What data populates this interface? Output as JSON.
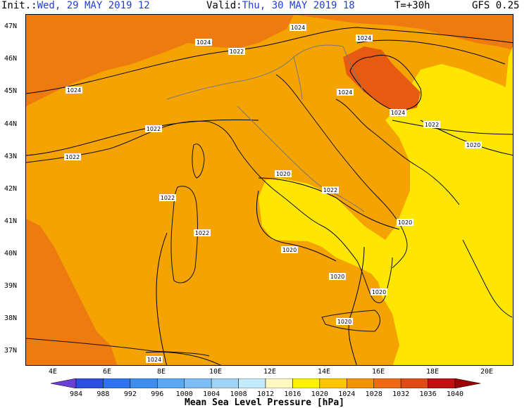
{
  "header": {
    "init_label": "Init.:",
    "init_value": "Wed, 29 MAY 2019  12",
    "valid_label": "Valid:",
    "valid_value": "Thu, 30 MAY 2019  18",
    "forecast_step": "T=+30h",
    "model": "GFS 0.25"
  },
  "map": {
    "lat_labels": [
      "47N",
      "46N",
      "45N",
      "44N",
      "43N",
      "42N",
      "41N",
      "40N",
      "39N",
      "38N",
      "37N"
    ],
    "lon_labels": [
      "4E",
      "6E",
      "8E",
      "10E",
      "12E",
      "14E",
      "16E",
      "18E",
      "20E"
    ],
    "isobar_labels": [
      {
        "text": "1024"
      },
      {
        "text": "1024"
      },
      {
        "text": "1022"
      },
      {
        "text": "1024"
      },
      {
        "text": "1024"
      },
      {
        "text": "1024"
      },
      {
        "text": "1022"
      },
      {
        "text": "1024"
      },
      {
        "text": "1022"
      },
      {
        "text": "1022"
      },
      {
        "text": "1020"
      },
      {
        "text": "1020"
      },
      {
        "text": "1022"
      },
      {
        "text": "1022"
      },
      {
        "text": "1022"
      },
      {
        "text": "1020"
      },
      {
        "text": "1020"
      },
      {
        "text": "1020"
      },
      {
        "text": "1020"
      },
      {
        "text": "1020"
      },
      {
        "text": "1024"
      }
    ]
  },
  "colorbar": {
    "title": "Mean Sea Level Pressure [hPa]",
    "ticks": [
      "984",
      "988",
      "992",
      "996",
      "1000",
      "1004",
      "1008",
      "1012",
      "1016",
      "1020",
      "1024",
      "1028",
      "1032",
      "1036",
      "1040"
    ],
    "colors": [
      "#6b3fd6",
      "#2b4fe0",
      "#2e72ee",
      "#3e8ef0",
      "#5aa7f2",
      "#7dbdf4",
      "#9fd4f7",
      "#c3ebfb",
      "#fff9c0",
      "#fff200",
      "#ffc400",
      "#f29400",
      "#ee6a12",
      "#e04a14",
      "#c01010",
      "#9a0606"
    ]
  }
}
